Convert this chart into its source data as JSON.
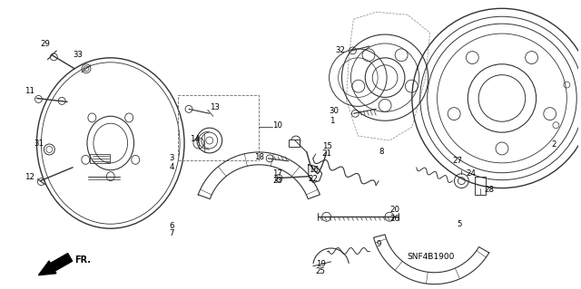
{
  "background_color": "#ffffff",
  "line_color": "#333333",
  "text_color": "#000000",
  "footer_code": "SNF4B1900",
  "arrow_label": "FR."
}
